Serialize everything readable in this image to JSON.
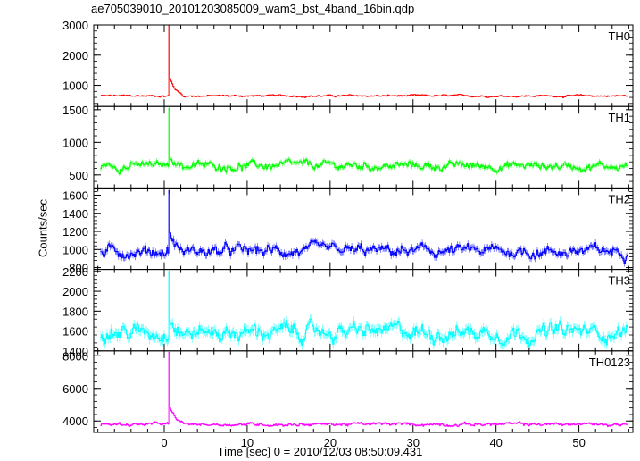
{
  "title": "ae705039010_20101203085009_wam3_bst_4band_16bin.qdp",
  "ylabel": "Counts/sec",
  "xlabel": "Time [sec] 0 = 2010/12/03 08:50:09.431",
  "chart_data": {
    "type": "line",
    "title": "ae705039010_20101203085009_wam3_bst_4band_16bin.qdp",
    "xlabel": "Time [sec] 0 = 2010/12/03 08:50:09.431",
    "ylabel": "Counts/sec",
    "xlim": [
      -8.5,
      56.5
    ],
    "x_ticks": [
      0,
      10,
      20,
      30,
      40,
      50
    ],
    "grid": false,
    "panels": [
      {
        "name": "TH0",
        "color": "#ff0000",
        "ylim": [
          300,
          3000
        ],
        "y_ticks": [
          1000,
          2000,
          3000
        ],
        "baseline": 650,
        "noise": 35,
        "peak": 3000,
        "peak_time": 0.5,
        "after_bump": 950
      },
      {
        "name": "TH1",
        "color": "#00ff00",
        "ylim": [
          300,
          1550
        ],
        "y_ticks": [
          500,
          1000,
          1500
        ],
        "baseline": 640,
        "noise": 70,
        "peak": 1520,
        "peak_time": 0.5,
        "after_bump": 720
      },
      {
        "name": "TH2",
        "color": "#0000ff",
        "ylim": [
          780,
          1680
        ],
        "y_ticks": [
          800,
          1000,
          1200,
          1400,
          1600
        ],
        "baseline": 980,
        "noise": 70,
        "peak": 1650,
        "peak_time": 0.5,
        "after_bump": 1080
      },
      {
        "name": "TH3",
        "color": "#00ffff",
        "ylim": [
          1400,
          2220
        ],
        "y_ticks": [
          1400,
          1600,
          1800,
          2000,
          2200
        ],
        "baseline": 1590,
        "noise": 90,
        "peak": 2200,
        "peak_time": 0.5,
        "after_bump": 1700
      },
      {
        "name": "TH0123",
        "color": "#ff00ff",
        "ylim": [
          3300,
          8300
        ],
        "y_ticks": [
          4000,
          6000,
          8000
        ],
        "baseline": 3800,
        "noise": 110,
        "peak": 8200,
        "peak_time": 0.5,
        "after_bump": 4300
      }
    ]
  }
}
